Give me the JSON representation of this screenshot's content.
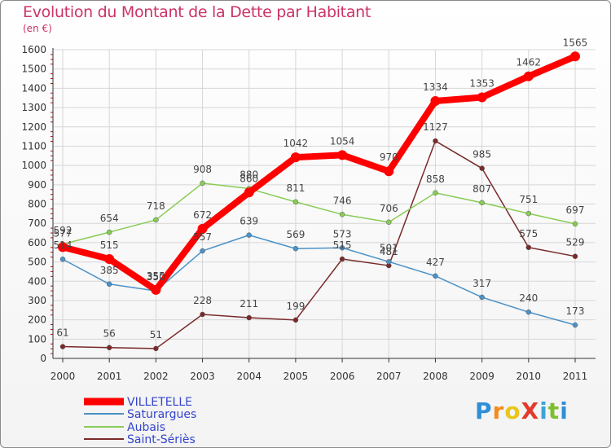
{
  "title": "Evolution du Montant de la Dette par Habitant",
  "subtitle": "(en €)",
  "logo": "ProXiti",
  "chart_data": {
    "type": "line",
    "x": [
      "2000",
      "2001",
      "2002",
      "2003",
      "2004",
      "2005",
      "2006",
      "2007",
      "2008",
      "2009",
      "2010",
      "2011"
    ],
    "ylim": [
      0,
      1600
    ],
    "yticks": [
      0,
      100,
      200,
      300,
      400,
      500,
      600,
      700,
      800,
      900,
      1000,
      1100,
      1200,
      1300,
      1400,
      1500,
      1600
    ],
    "grid": true,
    "legend_position": "bottom-left",
    "series": [
      {
        "name": "VILLETELLE",
        "color": "#ff0000",
        "values": [
          577,
          515,
          355,
          672,
          860,
          1042,
          1054,
          970,
          1334,
          1353,
          1462,
          1565
        ]
      },
      {
        "name": "Saturargues",
        "color": "#4b92c8",
        "values": [
          514,
          385,
          350,
          557,
          639,
          569,
          573,
          501,
          427,
          317,
          240,
          173
        ]
      },
      {
        "name": "Aubais",
        "color": "#88cc55",
        "values": [
          592,
          654,
          718,
          908,
          880,
          811,
          746,
          706,
          858,
          807,
          751,
          697
        ]
      },
      {
        "name": "Saint-Sériès",
        "color": "#7a2a2a",
        "values": [
          61,
          56,
          51,
          228,
          211,
          199,
          515,
          481,
          1127,
          985,
          575,
          529
        ]
      }
    ]
  }
}
